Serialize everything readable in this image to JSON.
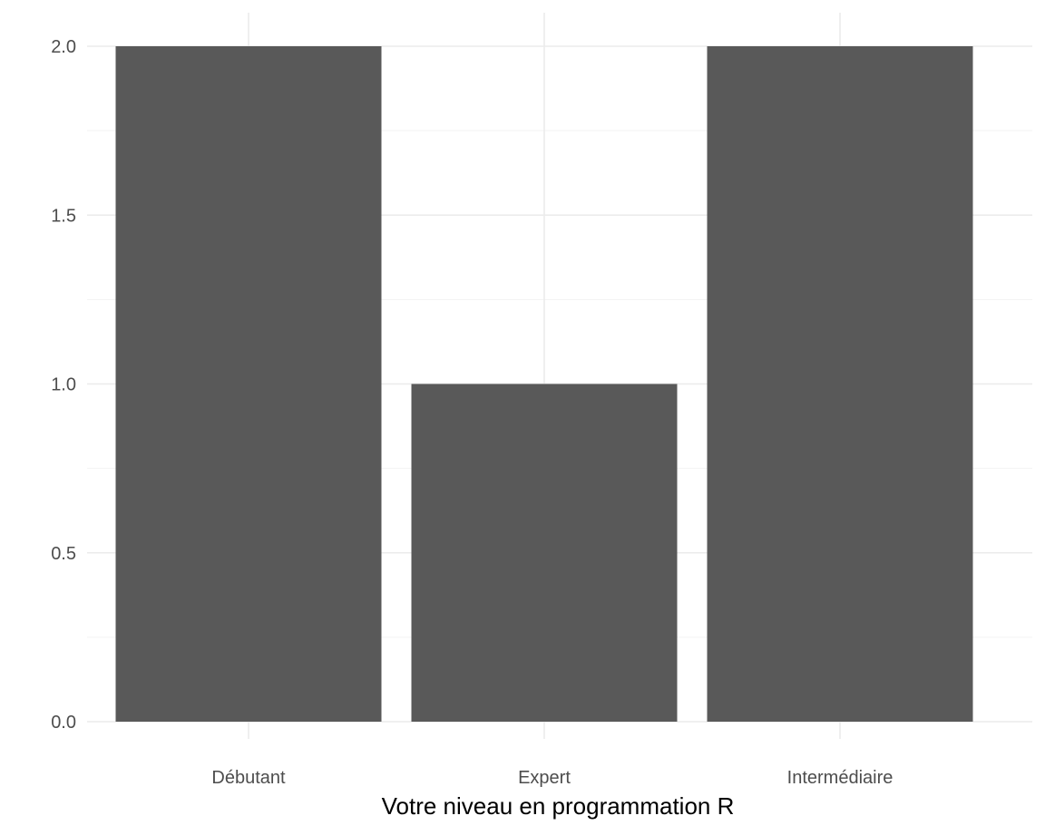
{
  "chart_data": {
    "type": "bar",
    "categories": [
      "Débutant",
      "Expert",
      "Intermédiaire"
    ],
    "values": [
      2,
      1,
      2
    ],
    "title": "",
    "xlabel": "Votre niveau en programmation R",
    "ylabel": "",
    "ylim": [
      0,
      2
    ],
    "yticks": [
      0,
      0.5,
      1,
      1.5,
      2
    ],
    "ytick_labels": [
      "0.0",
      "0.5",
      "1.0",
      "1.5",
      "2.0"
    ],
    "grid": true,
    "legend": "none",
    "colors": {
      "bar": "#595959",
      "grid_major": "#ebebeb",
      "grid_minor": "#f3f3f3",
      "tick_text": "#4d4d4d",
      "axis_title": "#000000",
      "background": "#ffffff"
    }
  }
}
